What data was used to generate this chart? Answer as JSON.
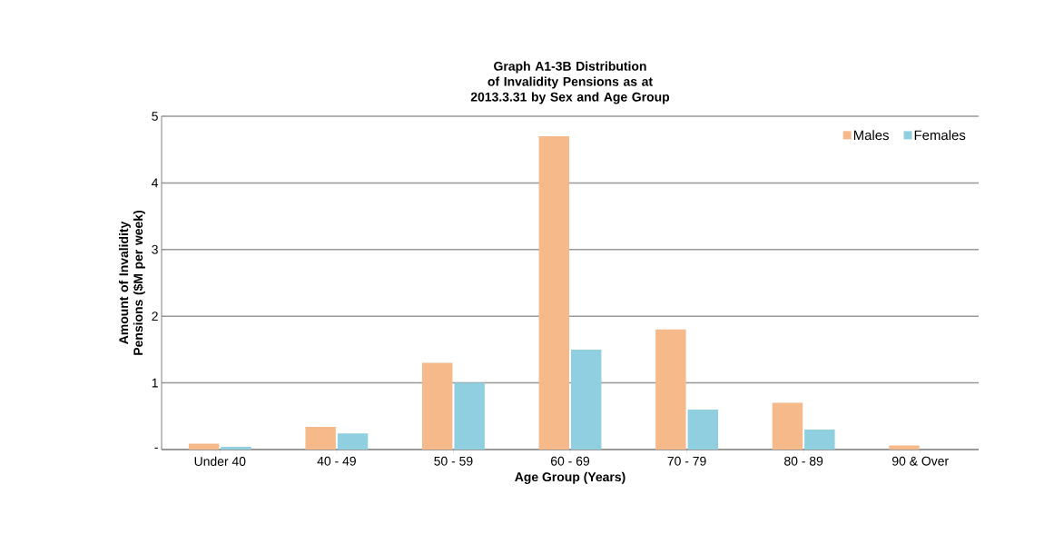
{
  "chart_data": {
    "type": "bar",
    "title": "Graph A1-3B Distribution of Invalidity Pensions as at 2013.3.31 by Sex and Age Group",
    "xlabel": "Age Group (Years)",
    "ylabel": "Amount of Invalidity Pensions ($M per week)",
    "categories": [
      "Under 40",
      "40 - 49",
      "50 - 59",
      "60 - 69",
      "70 - 79",
      "80 - 89",
      "90 & Over"
    ],
    "series": [
      {
        "name": "Males",
        "color": "#f5b98a",
        "values": [
          0.09,
          0.34,
          1.3,
          4.7,
          1.8,
          0.7,
          0.06
        ]
      },
      {
        "name": "Females",
        "color": "#8fcfe0",
        "values": [
          0.04,
          0.24,
          1.0,
          1.5,
          0.6,
          0.3,
          0
        ]
      }
    ],
    "ylim": [
      0,
      5
    ],
    "yticks": [
      {
        "value": 0,
        "label": "-"
      },
      1,
      2,
      3,
      4,
      5
    ],
    "grid": "y",
    "legend": "top right"
  }
}
